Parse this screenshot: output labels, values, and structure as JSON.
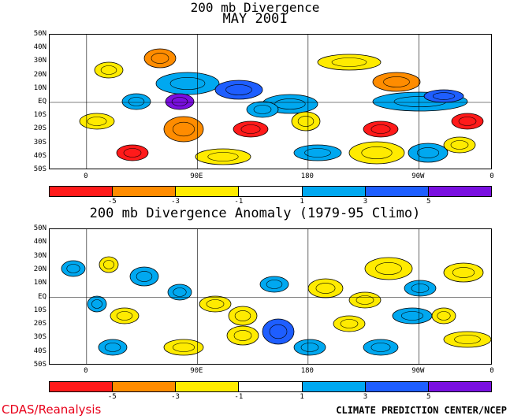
{
  "panels": [
    {
      "title_line1": "200 mb Divergence",
      "title_line2": "MAY 2001"
    },
    {
      "title_line1": "200 mb Divergence Anomaly (1979-95 Climo)"
    }
  ],
  "lat_labels": [
    "50N",
    "40N",
    "30N",
    "20N",
    "10N",
    "EQ",
    "10S",
    "20S",
    "30S",
    "40S",
    "50S"
  ],
  "lon_labels": [
    "0",
    "90E",
    "180",
    "90W",
    "0"
  ],
  "colorbar": {
    "labels": [
      "-5",
      "-3",
      "-1",
      "1",
      "3",
      "5"
    ],
    "colors": [
      "#ff1a1a",
      "#ff8c00",
      "#ffeb00",
      "#ffffff",
      "#00a8f0",
      "#1e5eff",
      "#7a10e0"
    ]
  },
  "credit_left": "CDAS/Reanalysis",
  "credit_right": "CLIMATE PREDICTION CENTER/NCEP"
}
